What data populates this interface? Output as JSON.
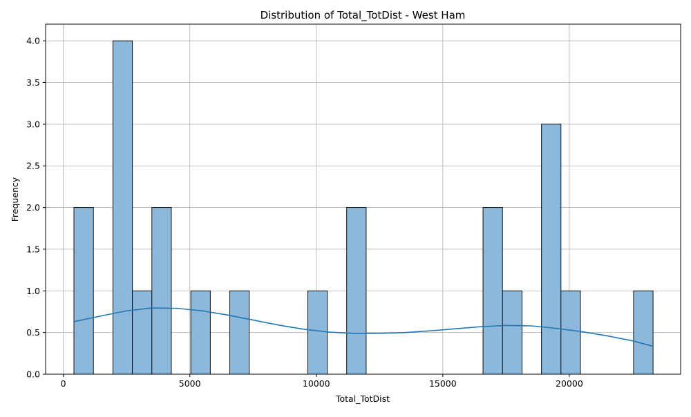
{
  "chart_data": {
    "type": "bar",
    "title": "Distribution of Total_TotDist - West Ham",
    "xlabel": "Total_TotDist",
    "ylabel": "Frequency",
    "xlim": [
      -700,
      24400
    ],
    "ylim": [
      0,
      4.2
    ],
    "x_ticks": [
      0,
      5000,
      10000,
      15000,
      20000
    ],
    "y_ticks": [
      0.0,
      0.5,
      1.0,
      1.5,
      2.0,
      2.5,
      3.0,
      3.5,
      4.0
    ],
    "x_tick_labels": [
      "0",
      "5000",
      "10000",
      "15000",
      "20000"
    ],
    "y_tick_labels": [
      "0.0",
      "0.5",
      "1.0",
      "1.5",
      "2.0",
      "2.5",
      "3.0",
      "3.5",
      "4.0"
    ],
    "grid": true,
    "bins": [
      {
        "x0": 420,
        "x1": 1190,
        "count": 2
      },
      {
        "x0": 1960,
        "x1": 2730,
        "count": 4
      },
      {
        "x0": 2730,
        "x1": 3500,
        "count": 1
      },
      {
        "x0": 3500,
        "x1": 4270,
        "count": 2
      },
      {
        "x0": 5040,
        "x1": 5810,
        "count": 1
      },
      {
        "x0": 6580,
        "x1": 7350,
        "count": 1
      },
      {
        "x0": 9660,
        "x1": 10430,
        "count": 1
      },
      {
        "x0": 11200,
        "x1": 11970,
        "count": 2
      },
      {
        "x0": 16590,
        "x1": 17360,
        "count": 2
      },
      {
        "x0": 17360,
        "x1": 18130,
        "count": 1
      },
      {
        "x0": 18900,
        "x1": 19670,
        "count": 3
      },
      {
        "x0": 19670,
        "x1": 20440,
        "count": 1
      },
      {
        "x0": 22540,
        "x1": 23310,
        "count": 1
      }
    ],
    "kde": {
      "x": [
        420,
        1500,
        2500,
        3500,
        4500,
        5500,
        6500,
        7500,
        8500,
        9500,
        10500,
        11500,
        12500,
        13500,
        14500,
        15500,
        16500,
        17500,
        18500,
        19500,
        20500,
        21500,
        22500,
        23310
      ],
      "y": [
        0.63,
        0.7,
        0.76,
        0.795,
        0.79,
        0.76,
        0.71,
        0.65,
        0.59,
        0.54,
        0.505,
        0.49,
        0.49,
        0.5,
        0.52,
        0.545,
        0.57,
        0.585,
        0.58,
        0.55,
        0.51,
        0.46,
        0.4,
        0.335
      ]
    },
    "colors": {
      "bar_fill": "#8cb9db",
      "bar_edge": "#111111",
      "kde_line": "#1f77b4",
      "grid": "#b0b0b0"
    }
  }
}
